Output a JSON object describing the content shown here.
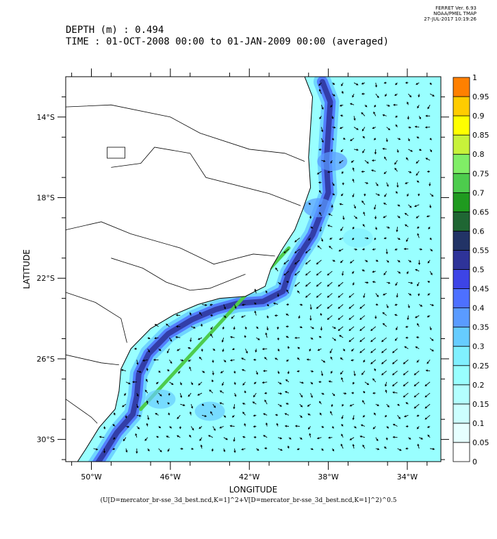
{
  "ferret": {
    "line1": "FERRET Ver. 6.93",
    "line2": "NOAA/PMEL TMAP",
    "line3": "27-JUL-2017 10:19:26"
  },
  "header": {
    "depth": "DEPTH (m) : 0.494",
    "time": "TIME : 01-OCT-2008 00:00 to 01-JAN-2009 00:00 (averaged)"
  },
  "formula": "(U[D=mercator_br-sse_3d_best.ncd,K=1]^2+V[D=mercator_br-sse_3d_best.ncd,K=1]^2)^0.5",
  "chart_data": {
    "type": "heatmap",
    "title": "",
    "xlabel": "LONGITUDE",
    "ylabel": "LATITUDE",
    "xlim": [
      -51.3,
      -32.3
    ],
    "ylim": [
      -31.1,
      -12.0
    ],
    "x_ticks": [
      {
        "value": -50,
        "label": "50°W"
      },
      {
        "value": -46,
        "label": "46°W"
      },
      {
        "value": -42,
        "label": "42°W"
      },
      {
        "value": -38,
        "label": "38°W"
      },
      {
        "value": -34,
        "label": "34°W"
      }
    ],
    "y_ticks": [
      {
        "value": -14,
        "label": "14°S"
      },
      {
        "value": -18,
        "label": "18°S"
      },
      {
        "value": -22,
        "label": "22°S"
      },
      {
        "value": -26,
        "label": "26°S"
      },
      {
        "value": -30,
        "label": "30°S"
      }
    ],
    "colorbar": {
      "levels": [
        "0",
        "0.05",
        "0.1",
        "0.15",
        "0.2",
        "0.25",
        "0.3",
        "0.35",
        "0.4",
        "0.45",
        "0.5",
        "0.55",
        "0.6",
        "0.65",
        "0.7",
        "0.75",
        "0.8",
        "0.85",
        "0.9",
        "0.95",
        "1"
      ],
      "colors": [
        "#ffffff",
        "#e6ffff",
        "#ccffff",
        "#b3ffff",
        "#99ffff",
        "#80f0ff",
        "#66ccff",
        "#5a9bff",
        "#4d70ff",
        "#3d44e6",
        "#2e3399",
        "#223366",
        "#1f6633",
        "#1f9a1f",
        "#4dcc4d",
        "#80ee66",
        "#c8f23a",
        "#ffff00",
        "#ffcc00",
        "#ff8000",
        "#ff0000"
      ]
    },
    "features": {
      "brazil_current_core": {
        "speed": 0.7,
        "from": [
          -40.0,
          -20.5
        ],
        "to": [
          -47.5,
          -28.5
        ]
      },
      "abrolhos_jet": {
        "speed": 0.45,
        "from": [
          -38.5,
          -13.0
        ],
        "to": [
          -37.5,
          -18.5
        ]
      },
      "open_ocean": {
        "speed": 0.2
      }
    }
  }
}
